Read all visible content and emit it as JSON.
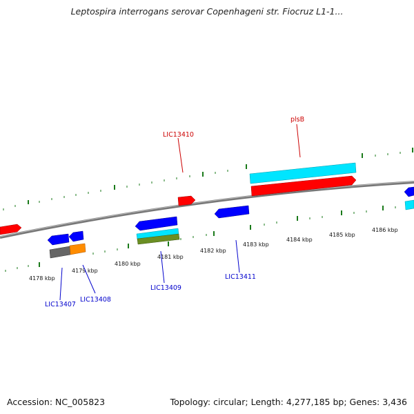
{
  "title": "Leptospira interrogans serovar Copenhageni str. Fiocruz L1-1...",
  "footer": {
    "accession": "Accession: NC_005823",
    "summary": "Topology: circular; Length: 4,277,185 bp; Genes: 3,436"
  },
  "colors": {
    "forward_strand": "#ff0000",
    "reverse_strand": "#0000ff",
    "cyan_feature": "#00e5ff",
    "olive_feature": "#6b8e23",
    "gray_feature": "#666666",
    "orange_feature": "#ff8c00",
    "tick": "#1a7a1a",
    "backbone": "#888888",
    "forward_label": "#cc0000",
    "reverse_label": "#0000cc"
  },
  "scale_labels": [
    "4178 kbp",
    "4179 kbp",
    "4180 kbp",
    "4181 kbp",
    "4182 kbp",
    "4183 kbp",
    "4184 kbp",
    "4185 kbp",
    "4186 kbp"
  ],
  "gene_labels": {
    "top": [
      "LIC13410",
      "plsB"
    ],
    "bottom": [
      "LIC13407",
      "LIC13408",
      "LIC13409",
      "LIC13411"
    ]
  }
}
